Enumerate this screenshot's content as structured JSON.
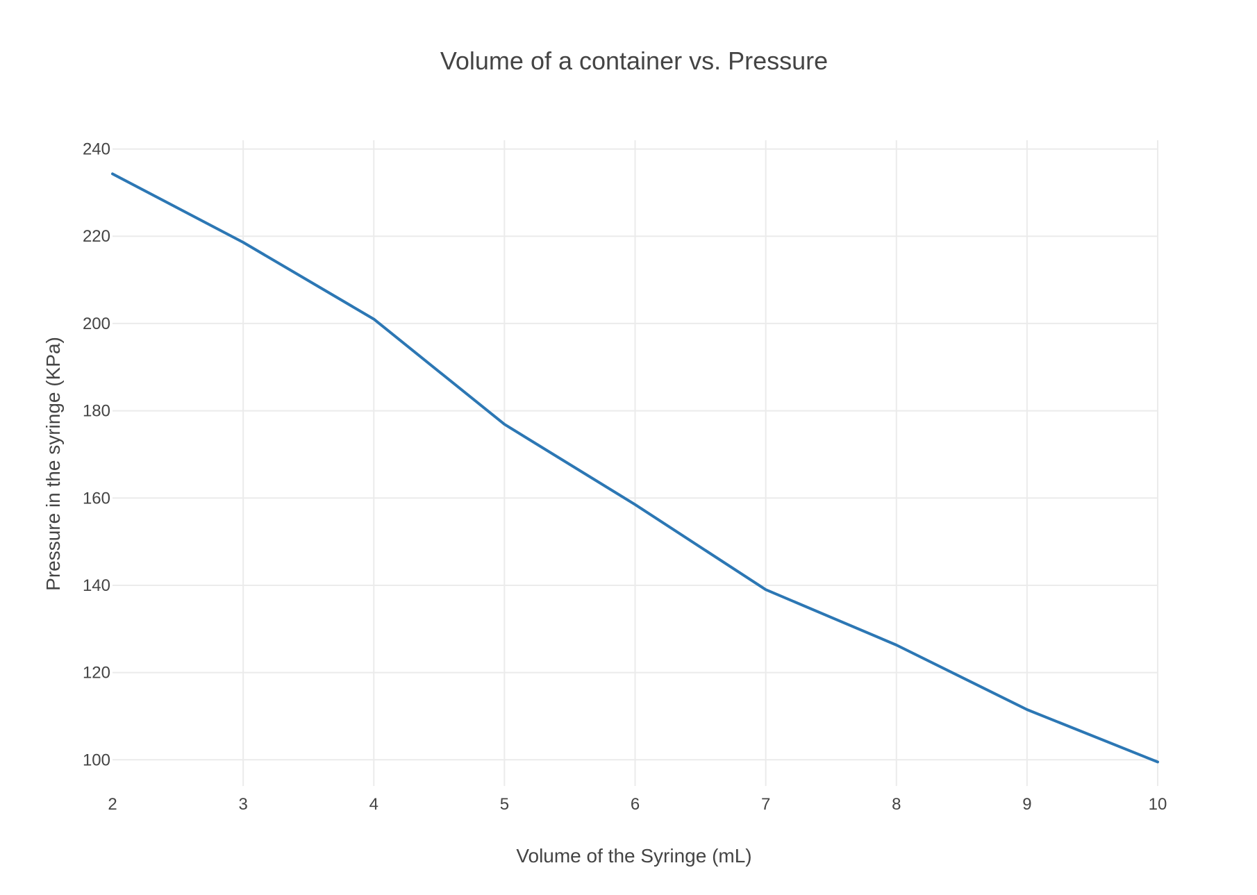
{
  "chart_data": {
    "type": "line",
    "title": "Volume of a container vs. Pressure",
    "xlabel": "Volume of the Syringe (mL)",
    "ylabel": "Pressure in the syringe (KPa)",
    "x": [
      2,
      3,
      4,
      5,
      6,
      7,
      8,
      9,
      10
    ],
    "series": [
      {
        "values": [
          234.3,
          218.6,
          201.0,
          176.9,
          158.5,
          139.0,
          126.3,
          111.5,
          99.5
        ],
        "color": "#2c77b4"
      }
    ],
    "xlim": [
      2,
      10
    ],
    "ylim": [
      94,
      242
    ],
    "x_ticks": [
      2,
      3,
      4,
      5,
      6,
      7,
      8,
      9,
      10
    ],
    "y_ticks": [
      100,
      120,
      140,
      160,
      180,
      200,
      220,
      240
    ],
    "grid": true,
    "legend": "none"
  }
}
